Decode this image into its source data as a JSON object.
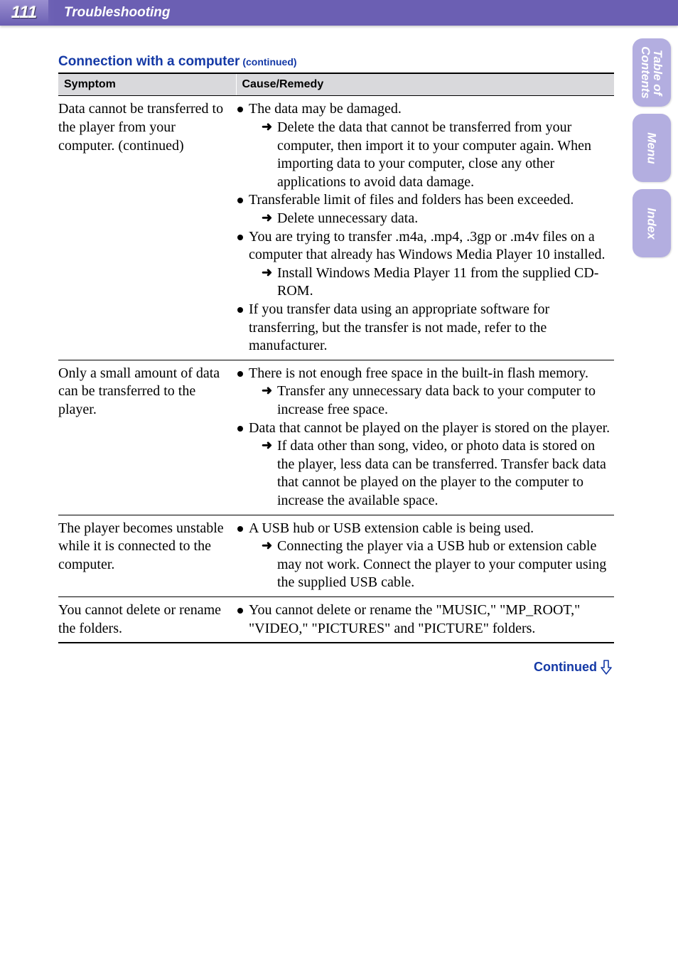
{
  "header": {
    "page_number": "111",
    "section": "Troubleshooting",
    "topbar_bg": "#6b5fb3"
  },
  "sidetabs": [
    {
      "key": "toc",
      "label": "Table of\nContents"
    },
    {
      "key": "menu",
      "label": "Menu"
    },
    {
      "key": "index",
      "label": "Index"
    }
  ],
  "heading": {
    "text": "Connection with a computer",
    "continued": " (continued)",
    "color": "#1439a6"
  },
  "table": {
    "columns": [
      "Symptom",
      "Cause/Remedy"
    ],
    "rows": [
      {
        "symptom": "Data cannot be transferred to the player from your computer. (continued)",
        "remedy": [
          {
            "type": "bullet",
            "text": "The data may be damaged."
          },
          {
            "type": "arrow",
            "text": "Delete the data that cannot be transferred from your computer, then import it to your computer again. When importing data to your computer, close any other applications to avoid data damage."
          },
          {
            "type": "bullet",
            "text": "Transferable limit of files and folders has been exceeded."
          },
          {
            "type": "arrow",
            "text": "Delete unnecessary data."
          },
          {
            "type": "bullet",
            "text": "You are trying to transfer .m4a, .mp4, .3gp or .m4v files on a computer that already has Windows Media Player 10 installed."
          },
          {
            "type": "arrow",
            "text": "Install Windows Media Player 11 from the supplied CD-ROM."
          },
          {
            "type": "bullet",
            "text": "If you transfer data using an appropriate software for transferring, but the transfer is not made, refer to the manufacturer."
          }
        ]
      },
      {
        "symptom": "Only a small amount of data can be transferred to the player.",
        "remedy": [
          {
            "type": "bullet",
            "text": "There is not enough free space in the built-in flash memory."
          },
          {
            "type": "arrow",
            "text": "Transfer any unnecessary data back to your computer to increase free space."
          },
          {
            "type": "bullet",
            "text": "Data that cannot be played on the player is stored on the player."
          },
          {
            "type": "arrow",
            "text": "If data other than song, video, or photo data is stored on the player, less data can be transferred. Transfer back data that cannot be played on the player to the computer to increase the available space."
          }
        ]
      },
      {
        "symptom": "The player becomes unstable while it is connected to the computer.",
        "remedy": [
          {
            "type": "bullet",
            "text": "A USB hub or USB extension cable is being used."
          },
          {
            "type": "arrow",
            "text": "Connecting the player via a USB hub or extension cable may not work. Connect the player to your computer using the supplied USB cable."
          }
        ]
      },
      {
        "symptom": "You cannot delete or rename the folders.",
        "remedy": [
          {
            "type": "bullet",
            "text": "You cannot delete or rename the \"MUSIC,\" \"MP_ROOT,\" \"VIDEO,\" \"PICTURES\" and \"PICTURE\" folders."
          }
        ]
      }
    ]
  },
  "footer": {
    "continued_label": "Continued",
    "color": "#1439a6"
  }
}
